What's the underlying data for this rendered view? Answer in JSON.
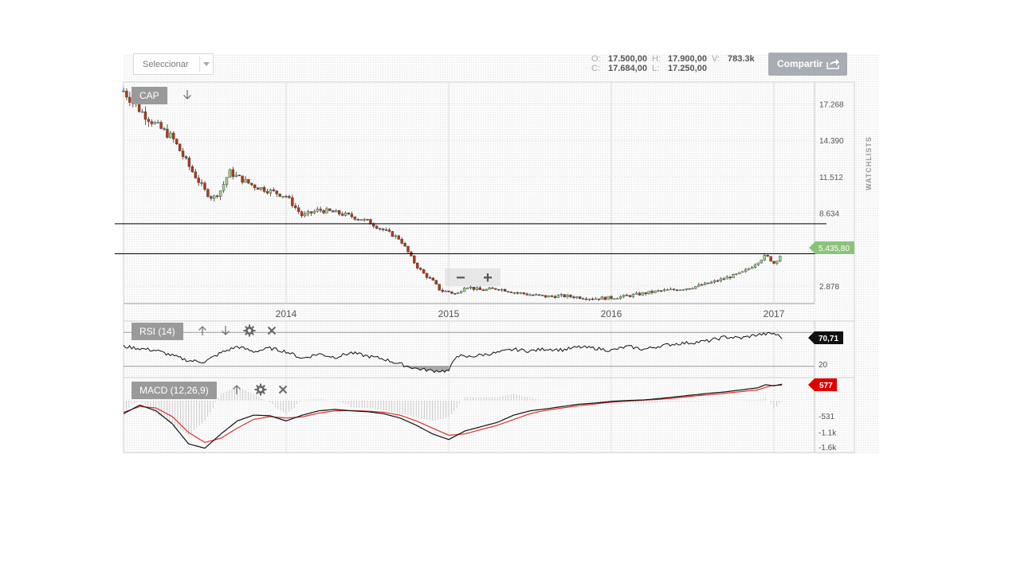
{
  "toolbar": {
    "select_label": "Seleccionar",
    "share_label": "Compartir",
    "share_icon": "share-arrow-icon"
  },
  "ohlc": {
    "o_key": "O:",
    "o_val": "17.500,00",
    "h_key": "H:",
    "h_val": "17.900,00",
    "v_key": "V:",
    "v_val": "783.3k",
    "c_key": "C:",
    "c_val": "17.684,00",
    "l_key": "L:",
    "l_val": "17.250,00"
  },
  "sidebar": {
    "watchlists_label": "WATCHLISTS"
  },
  "price_panel": {
    "symbol": "CAP",
    "last_price_label": "5.435,80",
    "zoom_minus": "−",
    "zoom_plus": "+",
    "down_icon": "arrow-down-icon"
  },
  "rsi_panel": {
    "label": "RSI (14)",
    "value_label": "70,71",
    "low_level_label": "20"
  },
  "macd_panel": {
    "label": "MACD (12,26,9)",
    "value_label": "577"
  },
  "colors": {
    "up_candle": "#9fd18a",
    "down_candle": "#b23a12",
    "macd_signal": "#e03030",
    "last_price_tag": "#8cc37a",
    "macd_tag": "#e00000"
  },
  "chart_data": [
    {
      "type": "candlestick",
      "name": "CAP",
      "x_ticks": [
        "2014",
        "2015",
        "2016",
        "2017"
      ],
      "y_ticks": [
        "17.268",
        "14.390",
        "11.512",
        "8.634",
        "2.878"
      ],
      "ylim": [
        1500,
        19000
      ],
      "horizontal_lines": [
        7800,
        5435.8
      ],
      "x": [
        2013.0,
        2013.1,
        2013.2,
        2013.3,
        2013.4,
        2013.5,
        2013.55,
        2013.6,
        2013.65,
        2013.7,
        2013.8,
        2013.9,
        2014.0,
        2014.1,
        2014.2,
        2014.3,
        2014.4,
        2014.5,
        2014.6,
        2014.7,
        2014.8,
        2014.85,
        2014.9,
        2014.95,
        2015.0,
        2015.05,
        2015.1,
        2015.15,
        2015.2,
        2015.3,
        2015.4,
        2015.5,
        2015.6,
        2015.7,
        2015.8,
        2015.9,
        2016.0,
        2016.1,
        2016.2,
        2016.3,
        2016.4,
        2016.5,
        2016.6,
        2016.65,
        2016.7,
        2016.8,
        2016.85,
        2016.9,
        2016.95,
        2017.0,
        2017.05
      ],
      "close": [
        18300,
        16800,
        15600,
        14600,
        12400,
        10400,
        9800,
        10500,
        11900,
        11500,
        10800,
        10400,
        10000,
        8400,
        8900,
        8700,
        8400,
        8000,
        7300,
        6600,
        4500,
        3800,
        3300,
        2500,
        2450,
        2200,
        2900,
        2700,
        2550,
        2700,
        2400,
        2200,
        2050,
        2100,
        2000,
        1900,
        1950,
        2100,
        2300,
        2500,
        2600,
        2800,
        3100,
        3300,
        3500,
        3900,
        4300,
        4800,
        5300,
        4700,
        5435.8
      ]
    },
    {
      "type": "line",
      "name": "RSI (14)",
      "y_ticks": [
        "20"
      ],
      "ylim": [
        0,
        100
      ],
      "levels": [
        80,
        20
      ],
      "x": [
        2013.0,
        2013.2,
        2013.4,
        2013.5,
        2013.6,
        2013.7,
        2013.8,
        2013.9,
        2014.0,
        2014.1,
        2014.2,
        2014.3,
        2014.4,
        2014.5,
        2014.6,
        2014.7,
        2014.8,
        2014.9,
        2015.0,
        2015.05,
        2015.1,
        2015.2,
        2015.3,
        2015.4,
        2015.5,
        2015.6,
        2015.7,
        2015.8,
        2015.9,
        2016.0,
        2016.1,
        2016.2,
        2016.3,
        2016.4,
        2016.5,
        2016.6,
        2016.7,
        2016.8,
        2016.9,
        2017.0,
        2017.05
      ],
      "values": [
        55,
        48,
        30,
        28,
        44,
        55,
        46,
        52,
        46,
        34,
        42,
        36,
        44,
        38,
        33,
        24,
        16,
        12,
        12,
        40,
        36,
        40,
        44,
        50,
        47,
        51,
        49,
        54,
        52,
        48,
        55,
        50,
        56,
        60,
        62,
        65,
        72,
        70,
        76,
        78,
        70.71
      ]
    },
    {
      "type": "line",
      "name": "MACD (12,26,9)",
      "y_ticks": [
        "-531",
        "-1.1k",
        "-1.6k"
      ],
      "ylim": [
        -1800,
        750
      ],
      "x": [
        2013.0,
        2013.1,
        2013.2,
        2013.3,
        2013.4,
        2013.5,
        2013.6,
        2013.7,
        2013.8,
        2013.9,
        2014.0,
        2014.1,
        2014.2,
        2014.3,
        2014.4,
        2014.5,
        2014.6,
        2014.7,
        2014.8,
        2014.9,
        2015.0,
        2015.1,
        2015.2,
        2015.3,
        2015.4,
        2015.5,
        2015.6,
        2015.7,
        2015.8,
        2015.9,
        2016.0,
        2016.1,
        2016.2,
        2016.3,
        2016.4,
        2016.5,
        2016.6,
        2016.7,
        2016.8,
        2016.9,
        2016.95,
        2017.0,
        2017.05
      ],
      "series": [
        {
          "name": "MACD",
          "values": [
            -450,
            -150,
            -350,
            -800,
            -1500,
            -1650,
            -1150,
            -700,
            -500,
            -520,
            -700,
            -500,
            -350,
            -300,
            -350,
            -380,
            -450,
            -600,
            -850,
            -1150,
            -1350,
            -1050,
            -900,
            -750,
            -500,
            -350,
            -280,
            -200,
            -120,
            -80,
            -20,
            10,
            30,
            80,
            140,
            200,
            260,
            310,
            380,
            450,
            560,
            520,
            577
          ]
        },
        {
          "name": "Signal",
          "values": [
            -400,
            -200,
            -250,
            -550,
            -1100,
            -1450,
            -1300,
            -950,
            -650,
            -550,
            -600,
            -560,
            -430,
            -350,
            -340,
            -360,
            -400,
            -500,
            -700,
            -950,
            -1200,
            -1150,
            -1000,
            -850,
            -650,
            -450,
            -330,
            -250,
            -170,
            -110,
            -50,
            -10,
            20,
            50,
            100,
            160,
            210,
            260,
            320,
            380,
            470,
            540,
            540
          ]
        }
      ]
    }
  ]
}
